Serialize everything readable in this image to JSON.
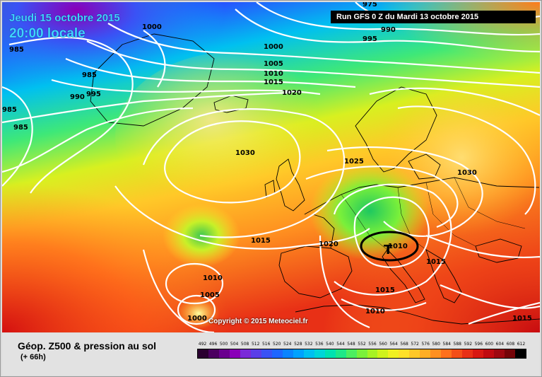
{
  "header": {
    "date": "Jeudi 15 octobre 2015",
    "time": "20:00 locale",
    "run": "Run GFS 0 Z du Mardi 13 octobre 2015"
  },
  "copyright": "Copyright © 2015 Meteociel.fr",
  "legend": {
    "title": "Géop. Z500 & pression au sol",
    "subtitle": "(+ 66h)",
    "scale_values": [
      "492",
      "496",
      "500",
      "504",
      "508",
      "512",
      "516",
      "520",
      "524",
      "528",
      "532",
      "536",
      "540",
      "544",
      "548",
      "552",
      "556",
      "560",
      "564",
      "568",
      "572",
      "576",
      "580",
      "584",
      "588",
      "592",
      "596",
      "600",
      "604",
      "608",
      "612"
    ],
    "scale_colors": [
      "#2a0030",
      "#4b0060",
      "#6a008e",
      "#8a00b8",
      "#7a2ad8",
      "#5a3ee8",
      "#3a52f5",
      "#1e66ff",
      "#0a84ff",
      "#00a2ff",
      "#00c0f0",
      "#00d6d8",
      "#00e2b0",
      "#1ee888",
      "#4cee60",
      "#7af03a",
      "#a6f224",
      "#cff21c",
      "#f0f020",
      "#ffe028",
      "#ffc828",
      "#ffae24",
      "#ff9020",
      "#ff701c",
      "#f44e18",
      "#e83016",
      "#d81812",
      "#c00a10",
      "#9e0810",
      "#740408",
      "#000000"
    ]
  },
  "isobars": [
    {
      "value": "975",
      "pos": "top-center"
    },
    {
      "value": "985",
      "pos": "top-left"
    },
    {
      "value": "1000",
      "pos": "top-left"
    },
    {
      "value": "990",
      "pos": "top-right"
    },
    {
      "value": "995",
      "pos": "top-right"
    },
    {
      "value": "985",
      "pos": "left"
    },
    {
      "value": "985",
      "pos": "left"
    },
    {
      "value": "990",
      "pos": "left"
    },
    {
      "value": "995",
      "pos": "left"
    },
    {
      "value": "985",
      "pos": "left"
    },
    {
      "value": "1000",
      "pos": "north-atlantic"
    },
    {
      "value": "1005",
      "pos": "north-atlantic"
    },
    {
      "value": "1010",
      "pos": "north-atlantic"
    },
    {
      "value": "1015",
      "pos": "north-atlantic"
    },
    {
      "value": "1020",
      "pos": "north-atlantic"
    },
    {
      "value": "1030",
      "pos": "mid-atlantic"
    },
    {
      "value": "1025",
      "pos": "north-sea"
    },
    {
      "value": "1030",
      "pos": "eastern-europe"
    },
    {
      "value": "1015",
      "pos": "atlantic"
    },
    {
      "value": "1020",
      "pos": "bay-of-biscay"
    },
    {
      "value": "1010",
      "pos": "italy"
    },
    {
      "value": "1015",
      "pos": "adriatic"
    },
    {
      "value": "1015",
      "pos": "western-med"
    },
    {
      "value": "1010",
      "pos": "north-africa"
    },
    {
      "value": "1010",
      "pos": "azores"
    },
    {
      "value": "1005",
      "pos": "azores"
    },
    {
      "value": "1000",
      "pos": "azores"
    },
    {
      "value": "1015",
      "pos": "eastern-med"
    }
  ],
  "markers": {
    "low_symbol": "T"
  },
  "colors": {
    "title": "#3fd3ff",
    "isobar": "#ffffff",
    "coast": "#000000"
  }
}
